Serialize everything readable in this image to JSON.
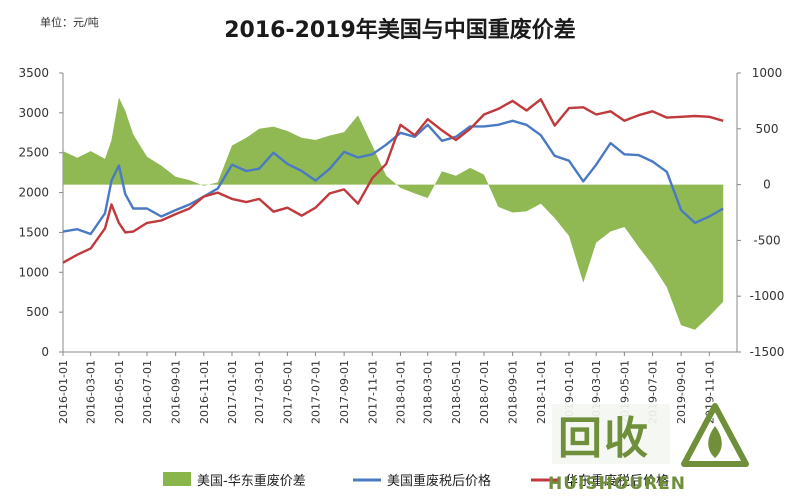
{
  "unit_label": "单位：元/吨",
  "chart_data": {
    "type": "line",
    "title": "2016-2019年美国与中国重废价差",
    "left_axis": {
      "ylim": [
        0,
        3500
      ],
      "ticks": [
        "0",
        "500",
        "1000",
        "1500",
        "2000",
        "2500",
        "3000",
        "3500"
      ]
    },
    "right_axis": {
      "ylim": [
        -1500,
        1000
      ],
      "ticks": [
        "-1500",
        "-1000",
        "-500",
        "0",
        "500",
        "1000"
      ]
    },
    "x_ticks": [
      "2016-01-01",
      "2016-03-01",
      "2016-05-01",
      "2016-07-01",
      "2016-09-01",
      "2016-11-01",
      "2017-01-01",
      "2017-03-01",
      "2017-05-01",
      "2017-07-01",
      "2017-09-01",
      "2017-11-01",
      "2018-01-01",
      "2018-03-01",
      "2018-05-01",
      "2018-07-01",
      "2018-09-01",
      "2018-11-01",
      "2019-01-01",
      "2019-03-01",
      "2019-05-01",
      "2019-07-01",
      "2019-09-01",
      "2019-11-01"
    ],
    "grid": false,
    "legend_position": "bottom",
    "series": [
      {
        "name": "美国-华东重废价差",
        "kind": "area",
        "axis": "right",
        "color": "#8ab54a",
        "points": [
          [
            "2016-01-01",
            300
          ],
          [
            "2016-02-01",
            240
          ],
          [
            "2016-03-01",
            300
          ],
          [
            "2016-04-01",
            230
          ],
          [
            "2016-04-15",
            400
          ],
          [
            "2016-05-01",
            780
          ],
          [
            "2016-05-15",
            660
          ],
          [
            "2016-06-01",
            450
          ],
          [
            "2016-07-01",
            250
          ],
          [
            "2016-08-01",
            170
          ],
          [
            "2016-09-01",
            70
          ],
          [
            "2016-10-01",
            40
          ],
          [
            "2016-11-01",
            -10
          ],
          [
            "2016-12-01",
            20
          ],
          [
            "2017-01-01",
            350
          ],
          [
            "2017-02-01",
            420
          ],
          [
            "2017-03-01",
            500
          ],
          [
            "2017-04-01",
            520
          ],
          [
            "2017-05-01",
            480
          ],
          [
            "2017-06-01",
            420
          ],
          [
            "2017-07-01",
            400
          ],
          [
            "2017-08-01",
            440
          ],
          [
            "2017-09-01",
            470
          ],
          [
            "2017-10-01",
            620
          ],
          [
            "2017-11-01",
            350
          ],
          [
            "2017-12-01",
            80
          ],
          [
            "2018-01-01",
            -30
          ],
          [
            "2018-02-01",
            -80
          ],
          [
            "2018-03-01",
            -120
          ],
          [
            "2018-04-01",
            120
          ],
          [
            "2018-05-01",
            80
          ],
          [
            "2018-06-01",
            150
          ],
          [
            "2018-07-01",
            90
          ],
          [
            "2018-08-01",
            -200
          ],
          [
            "2018-09-01",
            -250
          ],
          [
            "2018-10-01",
            -240
          ],
          [
            "2018-11-01",
            -170
          ],
          [
            "2018-12-01",
            -300
          ],
          [
            "2019-01-01",
            -460
          ],
          [
            "2019-02-01",
            -880
          ],
          [
            "2019-03-01",
            -520
          ],
          [
            "2019-04-01",
            -420
          ],
          [
            "2019-05-01",
            -380
          ],
          [
            "2019-06-01",
            -560
          ],
          [
            "2019-07-01",
            -720
          ],
          [
            "2019-08-01",
            -920
          ],
          [
            "2019-09-01",
            -1260
          ],
          [
            "2019-10-01",
            -1300
          ],
          [
            "2019-11-01",
            -1180
          ],
          [
            "2019-12-01",
            -1050
          ]
        ]
      },
      {
        "name": "美国重废税后价格",
        "kind": "line",
        "axis": "left",
        "color": "#4a7ac4",
        "points": [
          [
            "2016-01-01",
            1510
          ],
          [
            "2016-02-01",
            1540
          ],
          [
            "2016-03-01",
            1480
          ],
          [
            "2016-04-01",
            1740
          ],
          [
            "2016-04-15",
            2150
          ],
          [
            "2016-05-01",
            2340
          ],
          [
            "2016-05-15",
            1980
          ],
          [
            "2016-06-01",
            1800
          ],
          [
            "2016-07-01",
            1800
          ],
          [
            "2016-08-01",
            1700
          ],
          [
            "2016-09-01",
            1780
          ],
          [
            "2016-10-01",
            1850
          ],
          [
            "2016-11-01",
            1950
          ],
          [
            "2016-12-01",
            2050
          ],
          [
            "2017-01-01",
            2350
          ],
          [
            "2017-02-01",
            2270
          ],
          [
            "2017-03-01",
            2300
          ],
          [
            "2017-04-01",
            2500
          ],
          [
            "2017-05-01",
            2360
          ],
          [
            "2017-06-01",
            2270
          ],
          [
            "2017-07-01",
            2150
          ],
          [
            "2017-08-01",
            2300
          ],
          [
            "2017-09-01",
            2510
          ],
          [
            "2017-10-01",
            2440
          ],
          [
            "2017-11-01",
            2480
          ],
          [
            "2017-12-01",
            2600
          ],
          [
            "2018-01-01",
            2750
          ],
          [
            "2018-02-01",
            2700
          ],
          [
            "2018-03-01",
            2850
          ],
          [
            "2018-04-01",
            2650
          ],
          [
            "2018-05-01",
            2700
          ],
          [
            "2018-06-01",
            2830
          ],
          [
            "2018-07-01",
            2830
          ],
          [
            "2018-08-01",
            2850
          ],
          [
            "2018-09-01",
            2900
          ],
          [
            "2018-10-01",
            2850
          ],
          [
            "2018-11-01",
            2720
          ],
          [
            "2018-12-01",
            2460
          ],
          [
            "2019-01-01",
            2400
          ],
          [
            "2019-02-01",
            2140
          ],
          [
            "2019-03-01",
            2350
          ],
          [
            "2019-04-01",
            2620
          ],
          [
            "2019-05-01",
            2480
          ],
          [
            "2019-06-01",
            2470
          ],
          [
            "2019-07-01",
            2390
          ],
          [
            "2019-08-01",
            2260
          ],
          [
            "2019-09-01",
            1780
          ],
          [
            "2019-10-01",
            1620
          ],
          [
            "2019-11-01",
            1700
          ],
          [
            "2019-12-01",
            1800
          ]
        ]
      },
      {
        "name": "华东重废税后价格",
        "kind": "line",
        "axis": "left",
        "color": "#c0393d",
        "points": [
          [
            "2016-01-01",
            1120
          ],
          [
            "2016-02-01",
            1220
          ],
          [
            "2016-03-01",
            1300
          ],
          [
            "2016-04-01",
            1550
          ],
          [
            "2016-04-15",
            1850
          ],
          [
            "2016-05-01",
            1620
          ],
          [
            "2016-05-15",
            1500
          ],
          [
            "2016-06-01",
            1510
          ],
          [
            "2016-07-01",
            1620
          ],
          [
            "2016-08-01",
            1650
          ],
          [
            "2016-09-01",
            1730
          ],
          [
            "2016-10-01",
            1800
          ],
          [
            "2016-11-01",
            1950
          ],
          [
            "2016-12-01",
            2000
          ],
          [
            "2017-01-01",
            1920
          ],
          [
            "2017-02-01",
            1880
          ],
          [
            "2017-03-01",
            1920
          ],
          [
            "2017-04-01",
            1760
          ],
          [
            "2017-05-01",
            1810
          ],
          [
            "2017-06-01",
            1710
          ],
          [
            "2017-07-01",
            1810
          ],
          [
            "2017-08-01",
            1990
          ],
          [
            "2017-09-01",
            2040
          ],
          [
            "2017-10-01",
            1860
          ],
          [
            "2017-11-01",
            2180
          ],
          [
            "2017-12-01",
            2360
          ],
          [
            "2018-01-01",
            2850
          ],
          [
            "2018-02-01",
            2720
          ],
          [
            "2018-03-01",
            2920
          ],
          [
            "2018-04-01",
            2780
          ],
          [
            "2018-05-01",
            2660
          ],
          [
            "2018-06-01",
            2800
          ],
          [
            "2018-07-01",
            2980
          ],
          [
            "2018-08-01",
            3050
          ],
          [
            "2018-09-01",
            3150
          ],
          [
            "2018-10-01",
            3030
          ],
          [
            "2018-11-01",
            3170
          ],
          [
            "2018-12-01",
            2840
          ],
          [
            "2019-01-01",
            3060
          ],
          [
            "2019-02-01",
            3070
          ],
          [
            "2019-03-01",
            2980
          ],
          [
            "2019-04-01",
            3020
          ],
          [
            "2019-05-01",
            2900
          ],
          [
            "2019-06-01",
            2970
          ],
          [
            "2019-07-01",
            3020
          ],
          [
            "2019-08-01",
            2940
          ],
          [
            "2019-09-01",
            2950
          ],
          [
            "2019-10-01",
            2960
          ],
          [
            "2019-11-01",
            2950
          ],
          [
            "2019-12-01",
            2900
          ]
        ]
      }
    ]
  },
  "watermark": {
    "icon_text": "回收",
    "brand_text": "HUISHOUREN",
    "logo_icon": "leaf-triangle-icon"
  }
}
